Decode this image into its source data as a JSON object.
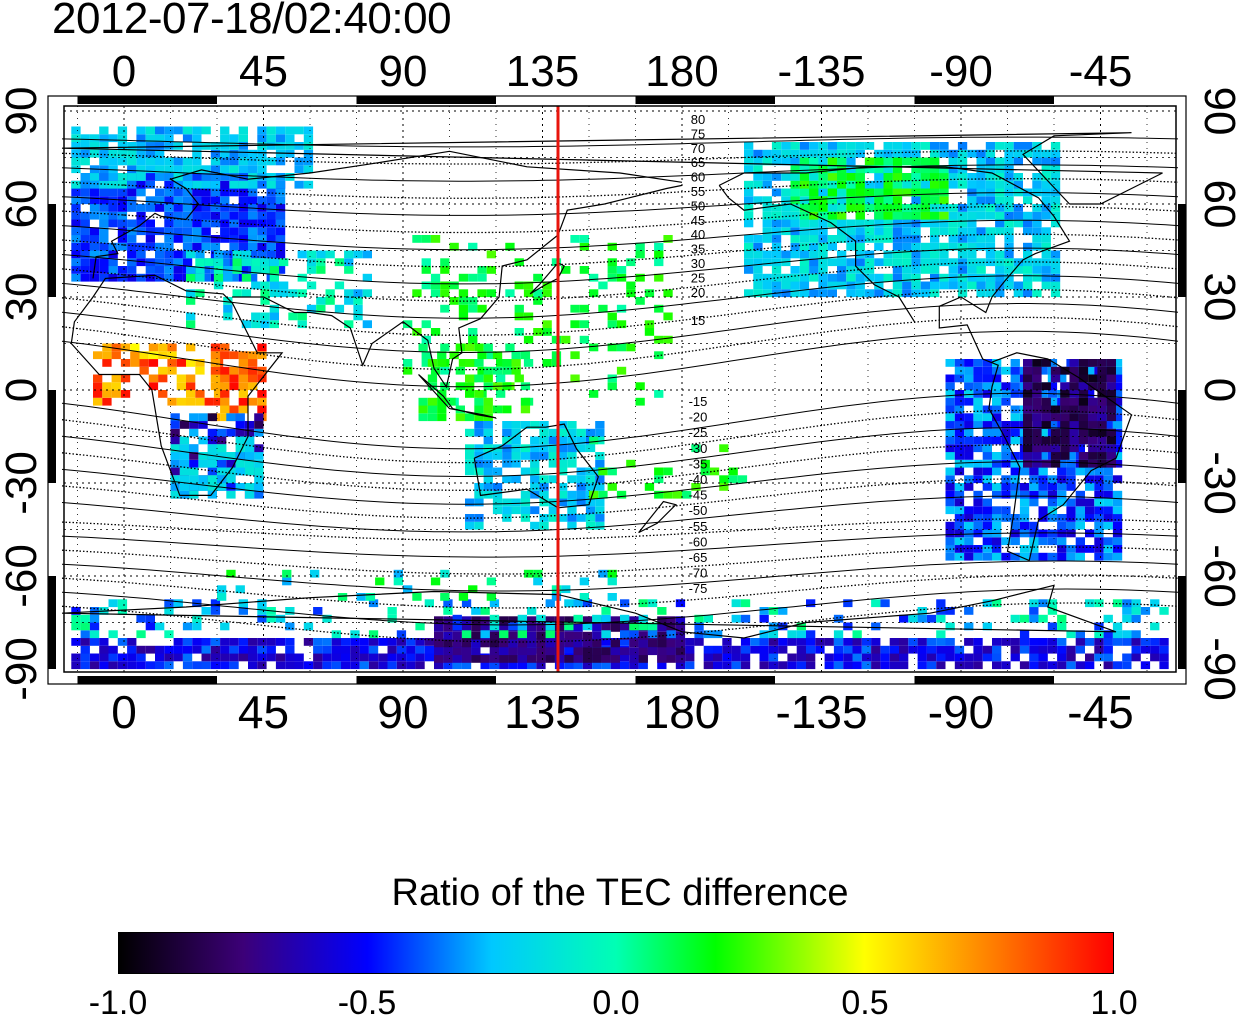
{
  "title": "2012-07-18/02:40:00",
  "map": {
    "top_lon_ticks": [
      "0",
      "45",
      "90",
      "135",
      "180",
      "-135",
      "-90",
      "-45"
    ],
    "bottom_lon_ticks": [
      "0",
      "45",
      "90",
      "135",
      "180",
      "-135",
      "-90",
      "-45"
    ],
    "left_lat_ticks": [
      "90",
      "60",
      "30",
      "0",
      "-30",
      "-60",
      "-90"
    ],
    "right_lat_ticks": [
      "90",
      "60",
      "30",
      "0",
      "-30",
      "-60",
      "-90"
    ],
    "contour_labels_north": [
      "80",
      "75",
      "70",
      "65",
      "60",
      "55",
      "50",
      "45",
      "40",
      "35",
      "30",
      "25",
      "20",
      "15"
    ],
    "contour_labels_south": [
      "-15",
      "-20",
      "-25",
      "-30",
      "-35",
      "-40",
      "-45",
      "-50",
      "-55",
      "-60",
      "-65",
      "-70",
      "-75"
    ],
    "red_meridian_lon": 140,
    "colors": {
      "meridian": "#e8140c",
      "frame": "#000000"
    }
  },
  "colorbar": {
    "title": "Ratio of the TEC difference",
    "tick_labels": [
      "-1.0",
      "-0.5",
      "0.0",
      "0.5",
      "1.0"
    ],
    "range": [
      -1.0,
      1.0
    ]
  }
}
